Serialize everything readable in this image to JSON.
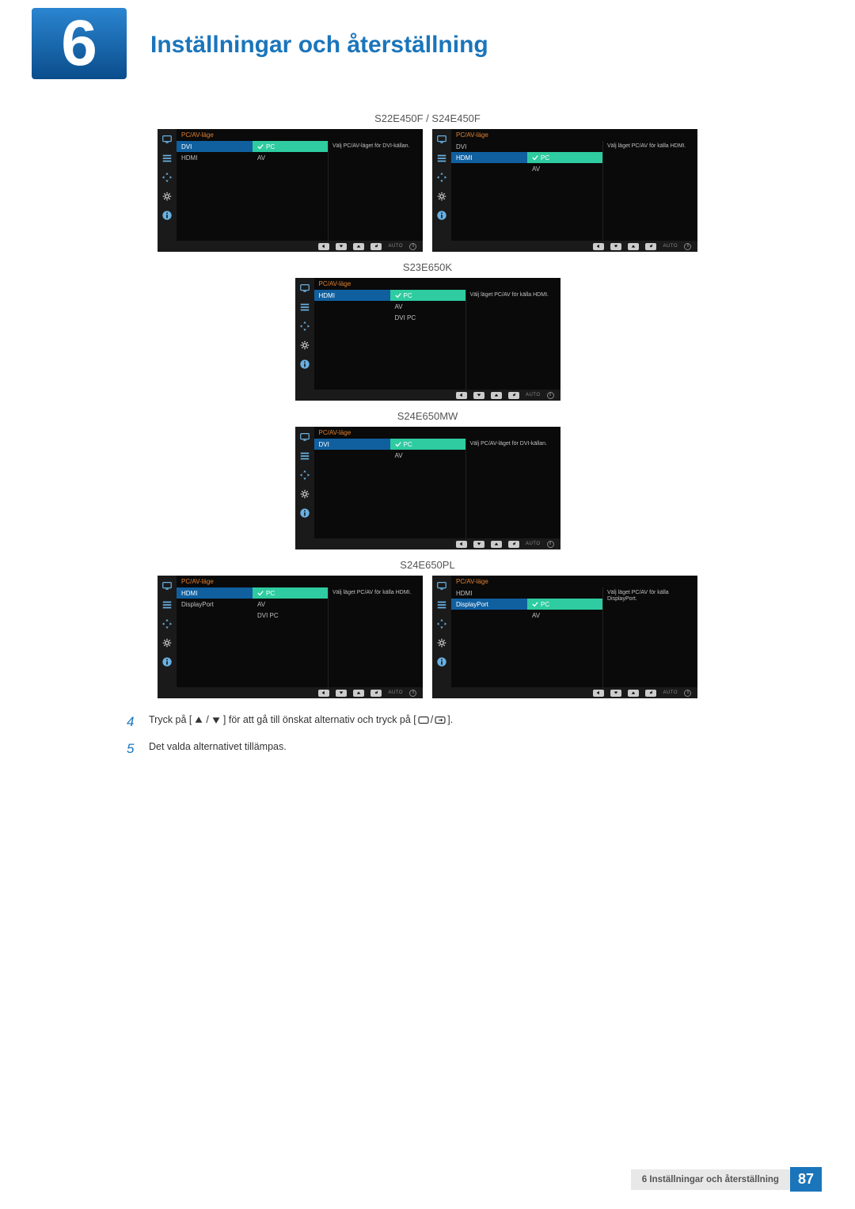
{
  "chapter_number": "6",
  "chapter_title": "Inställningar och återställning",
  "colors": {
    "blue_gradient_top": "#2a85d0",
    "blue_gradient_bottom": "#0a4d8c",
    "title_blue": "#1a75bb",
    "panel_title_orange": "#e08030",
    "selected_left_bg": "#1060a0",
    "selected_mid_bg": "#2ecca0",
    "sidebar_icon": "#6ab0e0"
  },
  "models": {
    "m1": "S22E450F / S24E450F",
    "m2": "S23E650K",
    "m3": "S24E650MW",
    "m4": "S24E650PL"
  },
  "panels": {
    "p1": {
      "title": "PC/AV-läge",
      "left": [
        {
          "label": "DVI",
          "sel": true
        },
        {
          "label": "HDMI",
          "sel": false
        }
      ],
      "mid": [
        {
          "label": "PC",
          "sel": true
        },
        {
          "label": "AV",
          "sel": false
        }
      ],
      "help": "Välj PC/AV-läget för DVI-källan."
    },
    "p2": {
      "title": "PC/AV-läge",
      "left": [
        {
          "label": "DVI",
          "sel": false
        },
        {
          "label": "HDMI",
          "sel": true
        }
      ],
      "mid": [
        {
          "label": "",
          "sel": false
        },
        {
          "label": "PC",
          "sel": true
        },
        {
          "label": "AV",
          "sel": false
        }
      ],
      "help": "Välj läget PC/AV för källa HDMI."
    },
    "p3": {
      "title": "PC/AV-läge",
      "left": [
        {
          "label": "HDMI",
          "sel": true
        }
      ],
      "mid": [
        {
          "label": "PC",
          "sel": true
        },
        {
          "label": "AV",
          "sel": false
        },
        {
          "label": "DVI PC",
          "sel": false
        }
      ],
      "help": "Välj läget PC/AV för källa HDMI."
    },
    "p4": {
      "title": "PC/AV-läge",
      "left": [
        {
          "label": "DVI",
          "sel": true
        }
      ],
      "mid": [
        {
          "label": "PC",
          "sel": true
        },
        {
          "label": "AV",
          "sel": false
        }
      ],
      "help": "Välj PC/AV-läget för DVI-källan."
    },
    "p5": {
      "title": "PC/AV-läge",
      "left": [
        {
          "label": "HDMI",
          "sel": true
        },
        {
          "label": "DisplayPort",
          "sel": false
        }
      ],
      "mid": [
        {
          "label": "PC",
          "sel": true
        },
        {
          "label": "AV",
          "sel": false
        },
        {
          "label": "DVI PC",
          "sel": false
        }
      ],
      "help": "Välj läget PC/AV för källa HDMI."
    },
    "p6": {
      "title": "PC/AV-läge",
      "left": [
        {
          "label": "HDMI",
          "sel": false
        },
        {
          "label": "DisplayPort",
          "sel": true
        }
      ],
      "mid": [
        {
          "label": "",
          "sel": false
        },
        {
          "label": "PC",
          "sel": true
        },
        {
          "label": "AV",
          "sel": false
        }
      ],
      "help": "Välj läget PC/AV för källa DisplayPort."
    }
  },
  "nav_auto": "AUTO",
  "instructions": {
    "s4_num": "4",
    "s4_a": "Tryck på [",
    "s4_b": "] för att gå till önskat alternativ och tryck på [",
    "s4_c": "].",
    "s5_num": "5",
    "s5_text": "Det valda alternativet tillämpas."
  },
  "footer": {
    "text": "6 Inställningar och återställning",
    "page": "87"
  }
}
